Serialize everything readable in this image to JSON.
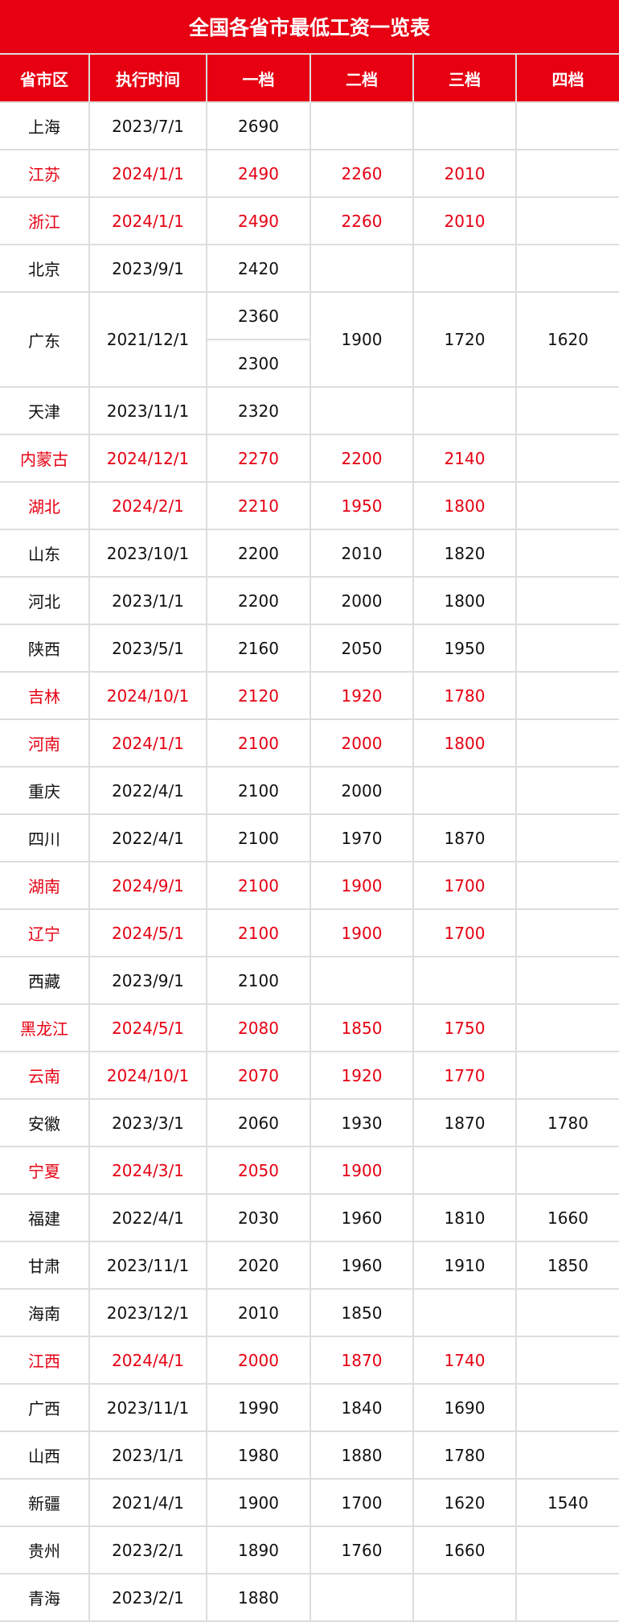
{
  "title": "全国各省市最低工资一览表",
  "colors": {
    "accent": "#e60012",
    "highlight_text": "#e60012",
    "grid": "#dddddd"
  },
  "columns": [
    "省市区",
    "执行时间",
    "一档",
    "二档",
    "三档",
    "四档"
  ],
  "rows": [
    {
      "region": "上海",
      "date": "2023/7/1",
      "tiers": [
        "2690",
        "",
        "",
        ""
      ],
      "highlight": false
    },
    {
      "region": "江苏",
      "date": "2024/1/1",
      "tiers": [
        "2490",
        "2260",
        "2010",
        ""
      ],
      "highlight": true
    },
    {
      "region": "浙江",
      "date": "2024/1/1",
      "tiers": [
        "2490",
        "2260",
        "2010",
        ""
      ],
      "highlight": true
    },
    {
      "region": "北京",
      "date": "2023/9/1",
      "tiers": [
        "2420",
        "",
        "",
        ""
      ],
      "highlight": false
    },
    {
      "region": "广东",
      "date": "2021/12/1",
      "tiers": [
        "2360",
        "1900",
        "1720",
        "1620"
      ],
      "tier1_extra": "2300",
      "highlight": false
    },
    {
      "region": "天津",
      "date": "2023/11/1",
      "tiers": [
        "2320",
        "",
        "",
        ""
      ],
      "highlight": false
    },
    {
      "region": "内蒙古",
      "date": "2024/12/1",
      "tiers": [
        "2270",
        "2200",
        "2140",
        ""
      ],
      "highlight": true
    },
    {
      "region": "湖北",
      "date": "2024/2/1",
      "tiers": [
        "2210",
        "1950",
        "1800",
        ""
      ],
      "highlight": true
    },
    {
      "region": "山东",
      "date": "2023/10/1",
      "tiers": [
        "2200",
        "2010",
        "1820",
        ""
      ],
      "highlight": false
    },
    {
      "region": "河北",
      "date": "2023/1/1",
      "tiers": [
        "2200",
        "2000",
        "1800",
        ""
      ],
      "highlight": false
    },
    {
      "region": "陕西",
      "date": "2023/5/1",
      "tiers": [
        "2160",
        "2050",
        "1950",
        ""
      ],
      "highlight": false
    },
    {
      "region": "吉林",
      "date": "2024/10/1",
      "tiers": [
        "2120",
        "1920",
        "1780",
        ""
      ],
      "highlight": true
    },
    {
      "region": "河南",
      "date": "2024/1/1",
      "tiers": [
        "2100",
        "2000",
        "1800",
        ""
      ],
      "highlight": true
    },
    {
      "region": "重庆",
      "date": "2022/4/1",
      "tiers": [
        "2100",
        "2000",
        "",
        ""
      ],
      "highlight": false
    },
    {
      "region": "四川",
      "date": "2022/4/1",
      "tiers": [
        "2100",
        "1970",
        "1870",
        ""
      ],
      "highlight": false
    },
    {
      "region": "湖南",
      "date": "2024/9/1",
      "tiers": [
        "2100",
        "1900",
        "1700",
        ""
      ],
      "highlight": true
    },
    {
      "region": "辽宁",
      "date": "2024/5/1",
      "tiers": [
        "2100",
        "1900",
        "1700",
        ""
      ],
      "highlight": true
    },
    {
      "region": "西藏",
      "date": "2023/9/1",
      "tiers": [
        "2100",
        "",
        "",
        ""
      ],
      "highlight": false
    },
    {
      "region": "黑龙江",
      "date": "2024/5/1",
      "tiers": [
        "2080",
        "1850",
        "1750",
        ""
      ],
      "highlight": true
    },
    {
      "region": "云南",
      "date": "2024/10/1",
      "tiers": [
        "2070",
        "1920",
        "1770",
        ""
      ],
      "highlight": true
    },
    {
      "region": "安徽",
      "date": "2023/3/1",
      "tiers": [
        "2060",
        "1930",
        "1870",
        "1780"
      ],
      "highlight": false
    },
    {
      "region": "宁夏",
      "date": "2024/3/1",
      "tiers": [
        "2050",
        "1900",
        "",
        ""
      ],
      "highlight": true
    },
    {
      "region": "福建",
      "date": "2022/4/1",
      "tiers": [
        "2030",
        "1960",
        "1810",
        "1660"
      ],
      "highlight": false
    },
    {
      "region": "甘肃",
      "date": "2023/11/1",
      "tiers": [
        "2020",
        "1960",
        "1910",
        "1850"
      ],
      "highlight": false
    },
    {
      "region": "海南",
      "date": "2023/12/1",
      "tiers": [
        "2010",
        "1850",
        "",
        ""
      ],
      "highlight": false
    },
    {
      "region": "江西",
      "date": "2024/4/1",
      "tiers": [
        "2000",
        "1870",
        "1740",
        ""
      ],
      "highlight": true
    },
    {
      "region": "广西",
      "date": "2023/11/1",
      "tiers": [
        "1990",
        "1840",
        "1690",
        ""
      ],
      "highlight": false
    },
    {
      "region": "山西",
      "date": "2023/1/1",
      "tiers": [
        "1980",
        "1880",
        "1780",
        ""
      ],
      "highlight": false
    },
    {
      "region": "新疆",
      "date": "2021/4/1",
      "tiers": [
        "1900",
        "1700",
        "1620",
        "1540"
      ],
      "highlight": false
    },
    {
      "region": "贵州",
      "date": "2023/2/1",
      "tiers": [
        "1890",
        "1760",
        "1660",
        ""
      ],
      "highlight": false
    },
    {
      "region": "青海",
      "date": "2023/2/1",
      "tiers": [
        "1880",
        "",
        "",
        ""
      ],
      "highlight": false
    }
  ]
}
